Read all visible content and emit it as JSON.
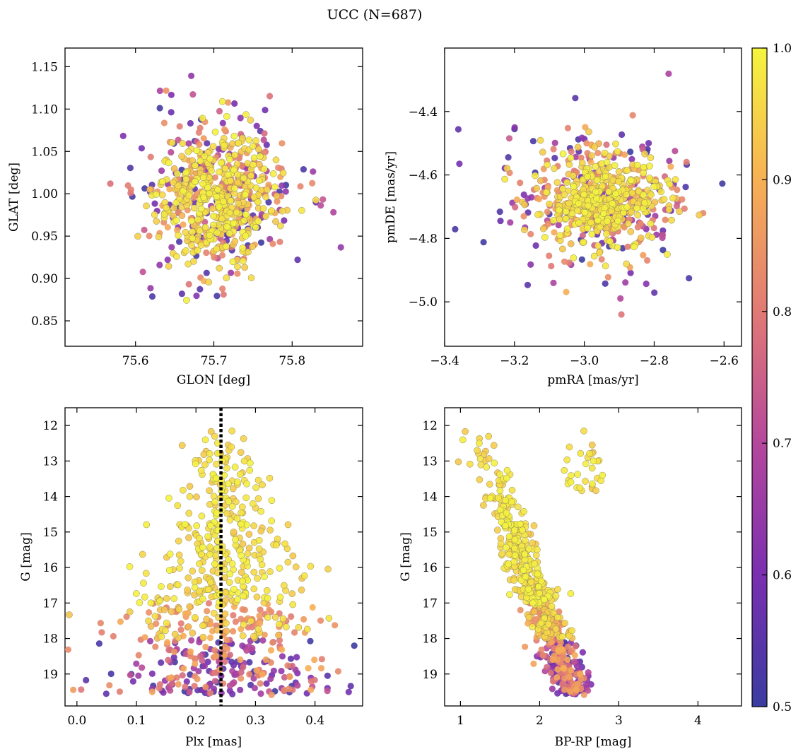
{
  "figure": {
    "title": "UCC (N=687)"
  },
  "colorbar": {
    "cmap": "plasma",
    "range": [
      0.5,
      1.0
    ],
    "ticks": [
      "0.5",
      "0.6",
      "0.7",
      "0.8",
      "0.9",
      "1.0"
    ]
  },
  "chart_data": [
    {
      "type": "scatter",
      "id": "glon-glat",
      "xlabel": "GLON [deg]",
      "ylabel": "GLAT [deg]",
      "xlim": [
        75.51,
        75.89
      ],
      "ylim": [
        0.82,
        1.172
      ],
      "xticks": [
        75.6,
        75.7,
        75.8
      ],
      "yticks": [
        0.85,
        0.9,
        0.95,
        1.0,
        1.05,
        1.1,
        1.15
      ],
      "points_note": "687 members, dense cluster near (75.70, 1.00), spread approx 75.55-75.85 x 0.86-1.13",
      "center": [
        75.705,
        0.995
      ],
      "spread": [
        0.045,
        0.045
      ],
      "xtick_labels": [
        "75.6",
        "75.7",
        "75.8"
      ],
      "ytick_labels": [
        "0.85",
        "0.90",
        "0.95",
        "1.00",
        "1.05",
        "1.10",
        "1.15"
      ]
    },
    {
      "type": "scatter",
      "id": "pmra-pmde",
      "xlabel": "pmRA [mas/yr]",
      "ylabel": "pmDE [mas/yr]",
      "xlim": [
        -3.4,
        -2.55
      ],
      "ylim": [
        -5.14,
        -4.2
      ],
      "xticks": [
        -3.4,
        -3.2,
        -3.0,
        -2.8,
        -2.6
      ],
      "yticks": [
        -5.0,
        -4.8,
        -4.6,
        -4.4
      ],
      "center": [
        -2.95,
        -4.68
      ],
      "spread": [
        0.1,
        0.1
      ],
      "xtick_labels": [
        "−3.4",
        "−3.2",
        "−3.0",
        "−2.8",
        "−2.6"
      ],
      "ytick_labels": [
        "−5.0",
        "−4.8",
        "−4.6",
        "−4.4"
      ]
    },
    {
      "type": "scatter",
      "id": "plx-g",
      "xlabel": "Plx [mas]",
      "ylabel": "G [mag]",
      "xlim": [
        -0.02,
        0.48
      ],
      "ylim": [
        19.9,
        11.5
      ],
      "xticks": [
        0.0,
        0.1,
        0.2,
        0.3,
        0.4
      ],
      "yticks": [
        12,
        13,
        14,
        15,
        16,
        17,
        18,
        19
      ],
      "vline": 0.242,
      "center": [
        0.24,
        17.0
      ],
      "xtick_labels": [
        "0.0",
        "0.1",
        "0.2",
        "0.3",
        "0.4"
      ],
      "ytick_labels": [
        "12",
        "13",
        "14",
        "15",
        "16",
        "17",
        "18",
        "19"
      ]
    },
    {
      "type": "scatter",
      "id": "bprp-g",
      "xlabel": "BP-RP [mag]",
      "ylabel": "G [mag]",
      "xlim": [
        0.8,
        4.55
      ],
      "ylim": [
        19.9,
        11.5
      ],
      "xticks": [
        1,
        2,
        3,
        4
      ],
      "yticks": [
        12,
        13,
        14,
        15,
        16,
        17,
        18,
        19
      ],
      "xtick_labels": [
        "1",
        "2",
        "3",
        "4"
      ],
      "ytick_labels": [
        "12",
        "13",
        "14",
        "15",
        "16",
        "17",
        "18",
        "19"
      ]
    }
  ]
}
